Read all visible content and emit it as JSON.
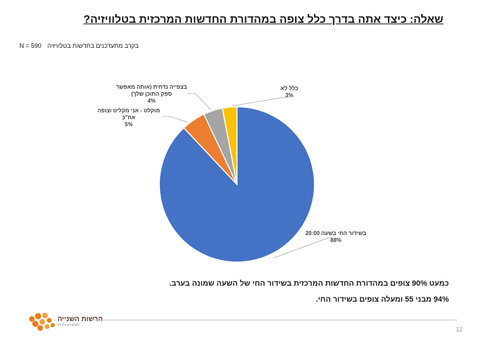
{
  "slide": {
    "title": "שאלה: כיצד אתה בדרך כלל צופה במהדורת החדשות המרכזית בטלוויזיה?",
    "sample_n": "N = 590",
    "sample_desc": "בקרב מתעדכנים בחדשות בטלוויזיה",
    "conclusions": [
      "כמעט 90% צופים במהדורת החדשות המרכזית בשידור החי של השעה שמונה בערב.",
      "94% מבני 55 ומעלה צופים בשידור החי."
    ],
    "logo_text": "הרשות השנייה",
    "logo_sub": "לטלוויזיה ולרדיו",
    "page_number": "12"
  },
  "colors": {
    "live": "#4472C4",
    "recorded": "#ED7D31",
    "on_demand": "#A5A5A5",
    "never": "#FFC000",
    "logo": "#F07D1A"
  },
  "chart_data": {
    "type": "pie",
    "title": "",
    "slices": [
      {
        "label_lines": [
          "בשידור החי בשעה 20:00"
        ],
        "percent_label": "88%",
        "value": 88,
        "color": "#4472C4"
      },
      {
        "label_lines": [
          "מוקלט - אני מקליט וצופה",
          "אח\"כ"
        ],
        "percent_label": "5%",
        "value": 5,
        "color": "#ED7D31"
      },
      {
        "label_lines": [
          "בצפייה נדחית (אותה מאפשר",
          "ספק התוכן שלך)"
        ],
        "percent_label": "4%",
        "value": 4,
        "color": "#A5A5A5"
      },
      {
        "label_lines": [
          "כלל לא"
        ],
        "percent_label": "3%",
        "value": 3,
        "color": "#FFC000"
      }
    ],
    "legend": "none"
  }
}
